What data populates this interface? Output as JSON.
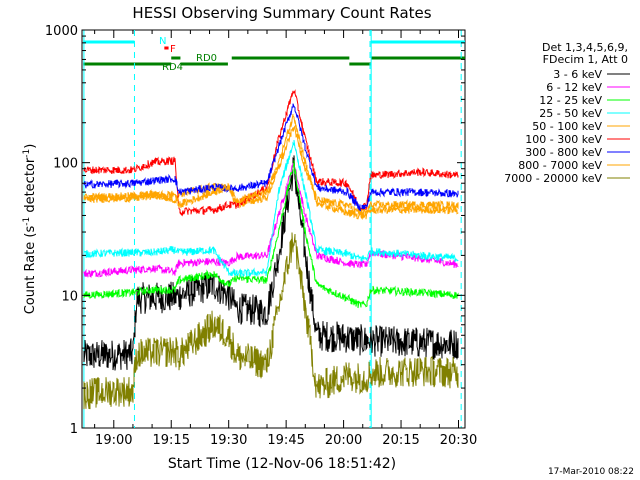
{
  "chart_data": {
    "type": "line",
    "title": "HESSI Observing Summary Count Rates",
    "xlabel": "Start Time (12-Nov-06 18:51:42)",
    "ylabel": "Count Rate (s⁻¹ detector⁻¹)",
    "ylabel_parts": {
      "main": "Count Rate (s",
      "sup1": "-1",
      "mid": " detector",
      "sup2": "-1",
      "end": ")"
    },
    "yscale": "log",
    "ylim": [
      1,
      1000
    ],
    "xlim_minutes_after_18_00": [
      51.7,
      151.7
    ],
    "x_ticks": [
      {
        "label": "19:00",
        "t": 60
      },
      {
        "label": "19:15",
        "t": 75
      },
      {
        "label": "19:30",
        "t": 90
      },
      {
        "label": "19:45",
        "t": 105
      },
      {
        "label": "20:00",
        "t": 120
      },
      {
        "label": "20:15",
        "t": 135
      },
      {
        "label": "20:30",
        "t": 150
      }
    ],
    "y_ticks": [
      {
        "label": "1",
        "v": 1
      },
      {
        "label": "10",
        "v": 10
      },
      {
        "label": "100",
        "v": 100
      },
      {
        "label": "1000",
        "v": 1000
      }
    ],
    "legend_header": [
      "Det 1,3,4,5,6,9,",
      "FDecim 1, Att 0"
    ],
    "legend_position": "right",
    "series": [
      {
        "name": "3 - 6 keV",
        "color": "#000000",
        "points": [
          [
            52,
            3.5
          ],
          [
            65,
            3.6
          ],
          [
            66,
            9.5
          ],
          [
            76,
            9.7
          ],
          [
            77,
            10
          ],
          [
            86,
            12
          ],
          [
            90,
            10
          ],
          [
            92,
            8
          ],
          [
            100,
            7.5
          ],
          [
            103,
            20
          ],
          [
            107,
            95
          ],
          [
            110,
            20
          ],
          [
            113,
            5
          ],
          [
            121,
            4.8
          ],
          [
            124,
            4.6
          ],
          [
            130,
            4.5
          ],
          [
            150,
            4.3
          ]
        ]
      },
      {
        "name": "6 - 12 keV",
        "color": "#ff00ff",
        "points": [
          [
            52,
            14.5
          ],
          [
            65,
            15.5
          ],
          [
            70,
            16
          ],
          [
            76,
            15
          ],
          [
            77,
            17.5
          ],
          [
            86,
            18
          ],
          [
            90,
            17.5
          ],
          [
            92,
            19.5
          ],
          [
            100,
            20
          ],
          [
            103,
            40
          ],
          [
            107,
            100
          ],
          [
            110,
            40
          ],
          [
            113,
            20
          ],
          [
            121,
            17.5
          ],
          [
            124,
            17
          ],
          [
            126,
            17
          ],
          [
            127,
            21
          ],
          [
            140,
            19
          ],
          [
            150,
            17
          ]
        ]
      },
      {
        "name": "12 - 25 keV",
        "color": "#00ff00",
        "points": [
          [
            52,
            10
          ],
          [
            65,
            10.5
          ],
          [
            70,
            11
          ],
          [
            76,
            11
          ],
          [
            77,
            13
          ],
          [
            86,
            14.5
          ],
          [
            90,
            12
          ],
          [
            92,
            13.5
          ],
          [
            100,
            13
          ],
          [
            103,
            30
          ],
          [
            107,
            100
          ],
          [
            110,
            30
          ],
          [
            113,
            12
          ],
          [
            121,
            9.5
          ],
          [
            124,
            8.5
          ],
          [
            126,
            8.5
          ],
          [
            127,
            11
          ],
          [
            140,
            10.5
          ],
          [
            150,
            10
          ]
        ]
      },
      {
        "name": "25 - 50 keV",
        "color": "#00ffff",
        "points": [
          [
            52,
            20.5
          ],
          [
            65,
            21
          ],
          [
            70,
            21
          ],
          [
            76,
            22
          ],
          [
            77,
            21
          ],
          [
            86,
            22
          ],
          [
            90,
            15
          ],
          [
            92,
            14.5
          ],
          [
            100,
            15
          ],
          [
            103,
            60
          ],
          [
            107,
            145
          ],
          [
            110,
            60
          ],
          [
            113,
            22
          ],
          [
            121,
            20.5
          ],
          [
            124,
            19
          ],
          [
            126,
            19
          ],
          [
            127,
            21.5
          ],
          [
            140,
            20
          ],
          [
            150,
            19
          ]
        ]
      },
      {
        "name": "50 - 100 keV",
        "color": "#ffa500",
        "points": [
          [
            52,
            55
          ],
          [
            65,
            56
          ],
          [
            70,
            58
          ],
          [
            76,
            52
          ],
          [
            77,
            58
          ],
          [
            86,
            66
          ],
          [
            90,
            65
          ],
          [
            92,
            48
          ],
          [
            100,
            55
          ],
          [
            103,
            90
          ],
          [
            107,
            190
          ],
          [
            110,
            90
          ],
          [
            113,
            50
          ],
          [
            121,
            42
          ],
          [
            124,
            40
          ],
          [
            126,
            40
          ],
          [
            127,
            44
          ],
          [
            140,
            44
          ],
          [
            150,
            44
          ]
        ]
      },
      {
        "name": "100 - 300 keV",
        "color": "#ff0000",
        "points": [
          [
            52,
            88
          ],
          [
            65,
            88
          ],
          [
            70,
            100
          ],
          [
            76,
            104
          ],
          [
            77,
            43
          ],
          [
            86,
            44
          ],
          [
            90,
            48
          ],
          [
            92,
            48
          ],
          [
            100,
            65
          ],
          [
            103,
            150
          ],
          [
            107,
            360
          ],
          [
            110,
            150
          ],
          [
            113,
            72
          ],
          [
            121,
            70
          ],
          [
            124,
            47
          ],
          [
            126,
            47
          ],
          [
            127,
            80
          ],
          [
            140,
            85
          ],
          [
            150,
            80
          ]
        ]
      },
      {
        "name": "300 - 800 keV",
        "color": "#0000ff",
        "points": [
          [
            52,
            68
          ],
          [
            65,
            70
          ],
          [
            70,
            73
          ],
          [
            76,
            76
          ],
          [
            77,
            60
          ],
          [
            86,
            65
          ],
          [
            90,
            64
          ],
          [
            92,
            64
          ],
          [
            100,
            70
          ],
          [
            103,
            130
          ],
          [
            107,
            280
          ],
          [
            110,
            130
          ],
          [
            113,
            65
          ],
          [
            121,
            60
          ],
          [
            124,
            46
          ],
          [
            126,
            46
          ],
          [
            127,
            60
          ],
          [
            140,
            60
          ],
          [
            150,
            58
          ]
        ]
      },
      {
        "name": "800 - 7000 keV",
        "color": "#ffa500",
        "points": [
          [
            52,
            53
          ],
          [
            65,
            54
          ],
          [
            70,
            56
          ],
          [
            76,
            58
          ],
          [
            77,
            48
          ],
          [
            86,
            60
          ],
          [
            90,
            66
          ],
          [
            92,
            52
          ],
          [
            100,
            60
          ],
          [
            103,
            100
          ],
          [
            107,
            230
          ],
          [
            110,
            100
          ],
          [
            113,
            52
          ],
          [
            121,
            48
          ],
          [
            124,
            42
          ],
          [
            126,
            42
          ],
          [
            127,
            48
          ],
          [
            140,
            48
          ],
          [
            150,
            48
          ]
        ]
      },
      {
        "name": "7000 - 20000 keV",
        "color": "#808000",
        "points": [
          [
            52,
            1.8
          ],
          [
            60,
            1.9
          ],
          [
            65,
            1.9
          ],
          [
            66,
            3.6
          ],
          [
            76,
            3.8
          ],
          [
            77,
            3.5
          ],
          [
            86,
            6
          ],
          [
            90,
            5
          ],
          [
            92,
            3.5
          ],
          [
            100,
            3
          ],
          [
            103,
            8
          ],
          [
            107,
            28
          ],
          [
            110,
            8
          ],
          [
            113,
            2
          ],
          [
            121,
            2.5
          ],
          [
            124,
            2.4
          ],
          [
            126,
            2.4
          ],
          [
            127,
            2.6
          ],
          [
            140,
            2.7
          ],
          [
            150,
            2.6
          ]
        ]
      }
    ],
    "dashed_vertical_lines_t": [
      65.4,
      126.9,
      150.7
    ],
    "solid_vertical_lines_t": [
      52.2,
      127.2
    ],
    "state_bars": [
      {
        "label": "N",
        "color": "#00ffff",
        "segments": [
          [
            52,
            65.4
          ],
          [
            127.2,
            151.7
          ]
        ],
        "level": 1
      },
      {
        "label": "F",
        "color": "#ff0000",
        "segments": [
          [
            73.2,
            74.3
          ]
        ],
        "level": 2
      },
      {
        "label": "RD0",
        "color": "#008000",
        "segments": [
          [
            75,
            77.4
          ],
          [
            90.8,
            121.5
          ],
          [
            127.2,
            151.7
          ]
        ],
        "level": 3
      },
      {
        "label": "RD4",
        "color": "#008000",
        "segments": [
          [
            52,
            65.4
          ],
          [
            65.4,
            75
          ],
          [
            77.4,
            89.8
          ],
          [
            121.5,
            127.2
          ]
        ],
        "level": 4
      }
    ],
    "footer_date": "17-Mar-2010 08:22"
  }
}
